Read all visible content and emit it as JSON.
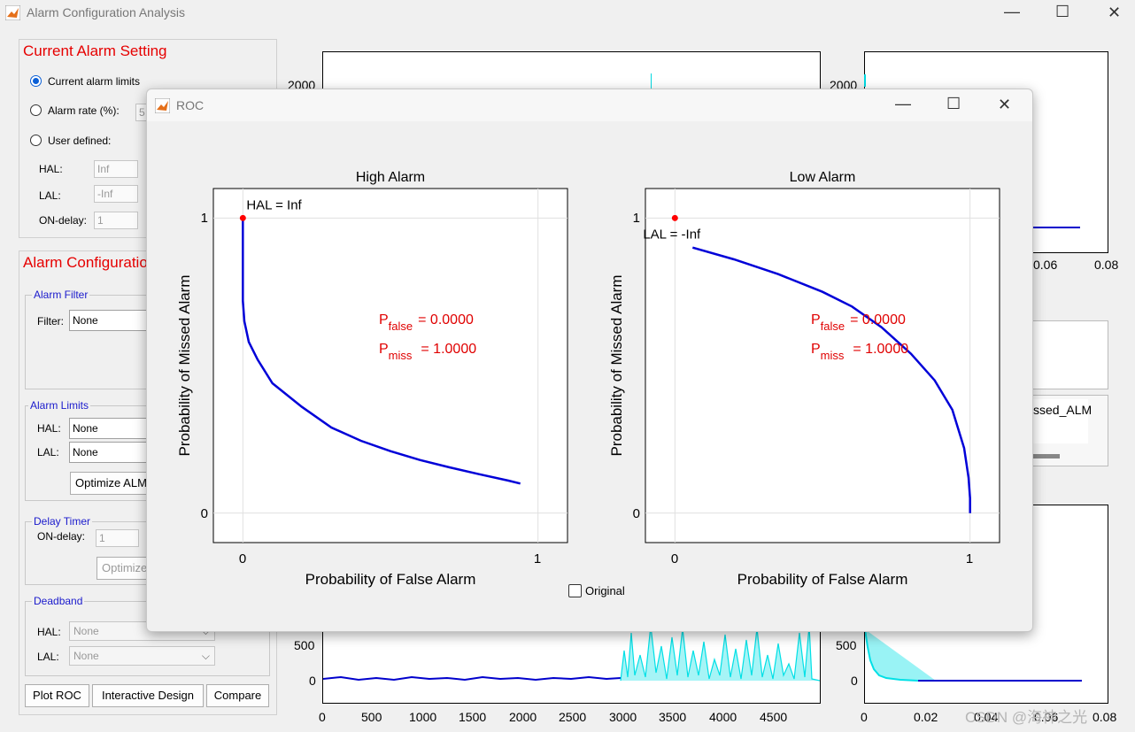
{
  "window": {
    "title": "Alarm Configuration Analysis",
    "controls": {
      "minimize": "—",
      "maximize": "☐",
      "close": "✕"
    }
  },
  "current_setting": {
    "title": "Current Alarm Setting",
    "options": [
      "Current alarm limits",
      "Alarm rate (%):",
      "User defined:"
    ],
    "alarm_rate_value": "5",
    "hal_label": "HAL:",
    "hal_value": "Inf",
    "lal_label": "LAL:",
    "lal_value": "-Inf",
    "ondelay_label": "ON-delay:",
    "ondelay_value": "1"
  },
  "alarm_config": {
    "title": "Alarm Configuratio",
    "filter_group": "Alarm Filter",
    "filter_label": "Filter:",
    "filter_value": "None",
    "limits_group": "Alarm Limits",
    "hal_label": "HAL:",
    "hal_value": "None",
    "lal_label": "LAL:",
    "lal_value": "None",
    "optimize_alm": "Optimize ALM",
    "delay_group": "Delay Timer",
    "ondelay_label": "ON-delay:",
    "ondelay_value": "1",
    "optimize_delay": "Optimize",
    "deadband_group": "Deadband",
    "db_hal_label": "HAL:",
    "db_hal_value": "None",
    "db_lal_label": "LAL:",
    "db_lal_value": "None"
  },
  "bottom_buttons": {
    "plot_roc": "Plot ROC",
    "interactive": "Interactive Design",
    "compare": "Compare"
  },
  "bg_plots": {
    "top_y": "2000",
    "top_right_y": "2000",
    "top_right_x": [
      "0.06",
      "0.08"
    ],
    "legend_text": "ssed_ALM",
    "bottom_y": [
      "500",
      "0"
    ],
    "bottom_x": [
      "0",
      "500",
      "1000",
      "1500",
      "2000",
      "2500",
      "3000",
      "3500",
      "4000",
      "4500"
    ],
    "bottom_right_y": [
      "500",
      "0"
    ],
    "bottom_right_x": [
      "0",
      "0.02",
      "0.04",
      "0.06",
      "0.08"
    ]
  },
  "roc": {
    "title": "ROC",
    "high": {
      "title": "High Alarm",
      "point_label": "HAL = Inf",
      "pfalse": "= 0.0000",
      "pmiss": "= 1.0000"
    },
    "low": {
      "title": "Low Alarm",
      "point_label": "LAL = -Inf",
      "pfalse": "= 0.0000",
      "pmiss": "= 1.0000"
    },
    "p_false_main": "P",
    "p_false_sub": "false",
    "p_miss_main": "P",
    "p_miss_sub": "miss",
    "xlabel": "Probability of False Alarm",
    "ylabel": "Probability of Missed Alarm",
    "ticks": [
      "0",
      "1"
    ],
    "original_checkbox": "Original"
  },
  "watermark": "CSDN @海神之光",
  "chart_data": [
    {
      "type": "line",
      "title": "High Alarm",
      "xlabel": "Probability of False Alarm",
      "ylabel": "Probability of Missed Alarm",
      "xlim": [
        -0.1,
        1.1
      ],
      "ylim": [
        -0.1,
        1.1
      ],
      "x": [
        0,
        0,
        0.005,
        0.02,
        0.05,
        0.1,
        0.2,
        0.3,
        0.4,
        0.5,
        0.6,
        0.7,
        0.8,
        0.9,
        0.94
      ],
      "y": [
        1,
        0.72,
        0.65,
        0.58,
        0.52,
        0.44,
        0.36,
        0.29,
        0.245,
        0.21,
        0.18,
        0.155,
        0.132,
        0.11,
        0.1
      ],
      "marker": {
        "x": 0,
        "y": 1,
        "label": "HAL = Inf"
      }
    },
    {
      "type": "line",
      "title": "Low Alarm",
      "xlabel": "Probability of False Alarm",
      "ylabel": "Probability of Missed Alarm",
      "xlim": [
        -0.1,
        1.1
      ],
      "ylim": [
        -0.1,
        1.1
      ],
      "x": [
        0.06,
        0.2,
        0.35,
        0.5,
        0.6,
        0.7,
        0.8,
        0.88,
        0.94,
        0.98,
        0.995,
        1,
        1
      ],
      "y": [
        0.9,
        0.86,
        0.81,
        0.75,
        0.7,
        0.63,
        0.54,
        0.45,
        0.35,
        0.22,
        0.12,
        0.05,
        0
      ],
      "marker": {
        "x": 0,
        "y": 1,
        "label": "LAL = -Inf"
      }
    }
  ]
}
